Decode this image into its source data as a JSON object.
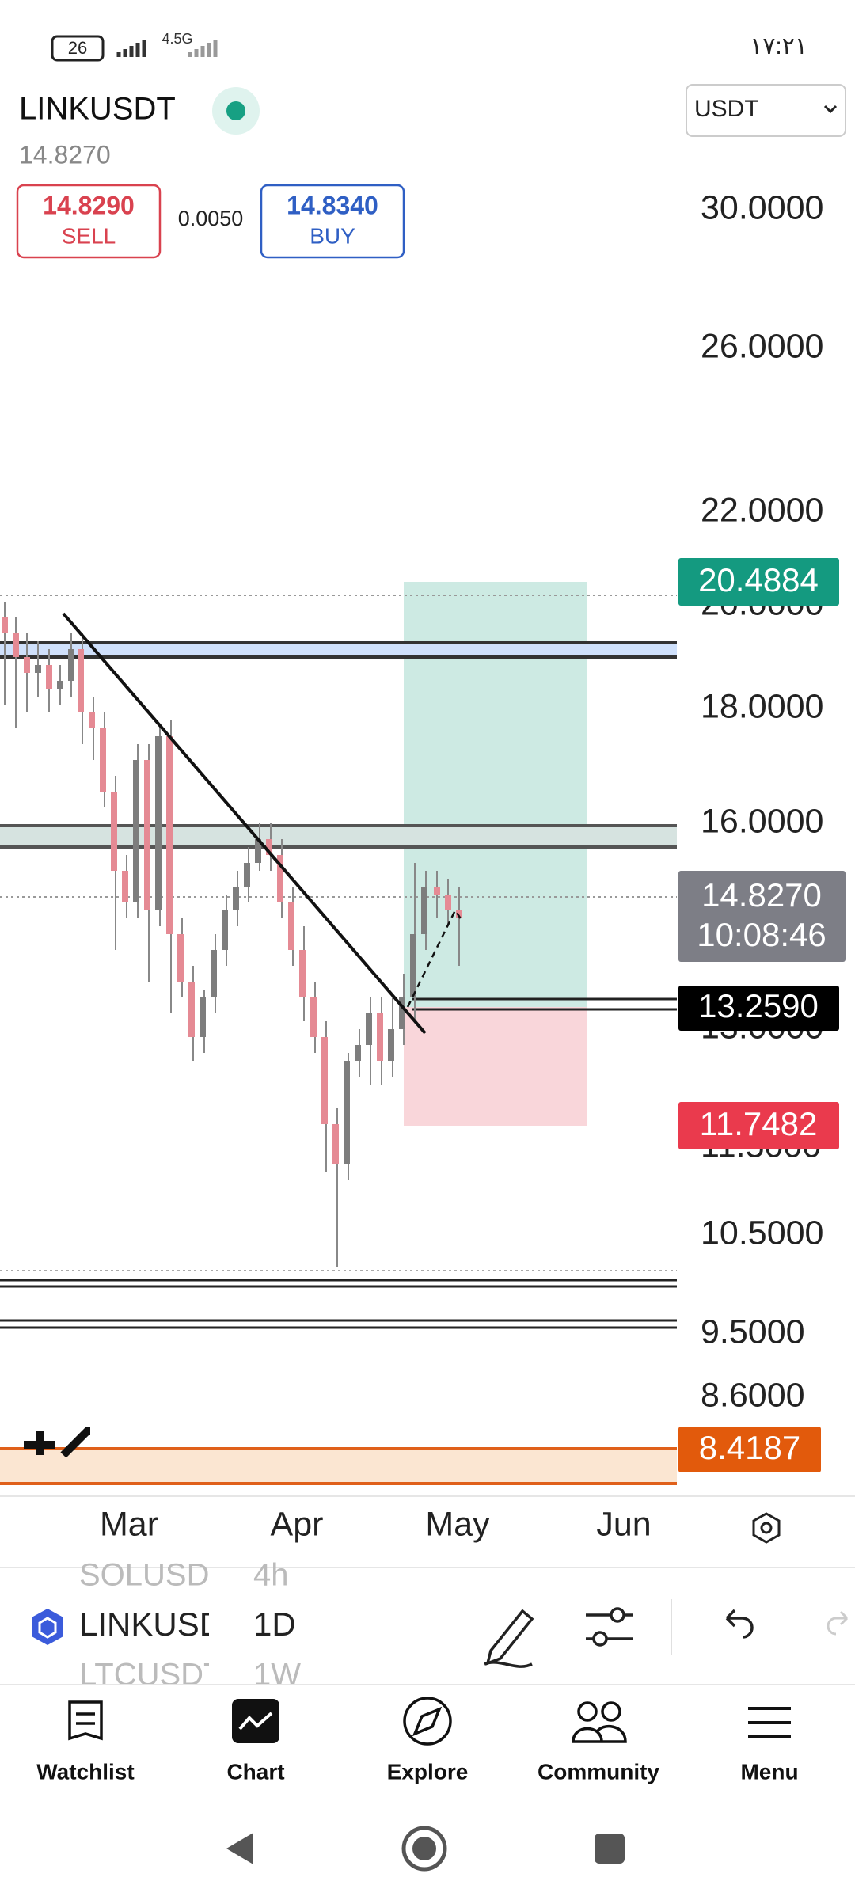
{
  "status_bar": {
    "battery": "26",
    "network": "4.5G",
    "time": "١٧:٢١"
  },
  "header": {
    "symbol": "LINKUSDT",
    "last_price": "14.8270",
    "currency": "USDT",
    "sell_price": "14.8290",
    "sell_label": "SELL",
    "spread": "0.0050",
    "buy_price": "14.8340",
    "buy_label": "BUY"
  },
  "price_scale": [
    "30.0000",
    "26.0000",
    "22.0000",
    "20.0000",
    "18.0000",
    "16.0000",
    "13.0000",
    "11.5000",
    "10.5000",
    "9.5000",
    "8.6000"
  ],
  "price_tags": {
    "take_profit": "20.4884",
    "current": "14.8270",
    "countdown": "10:08:46",
    "entry": "13.2590",
    "stop_loss": "11.7482",
    "alert": "8.4187"
  },
  "time_axis": [
    "Mar",
    "Apr",
    "May",
    "Jun"
  ],
  "symbol_bar": {
    "symbols": [
      "SOLUSD",
      "LINKUSD",
      "LTCUSDT"
    ],
    "intervals": [
      "4h",
      "1D",
      "1W"
    ]
  },
  "nav": [
    "Watchlist",
    "Chart",
    "Explore",
    "Community",
    "Menu"
  ]
}
